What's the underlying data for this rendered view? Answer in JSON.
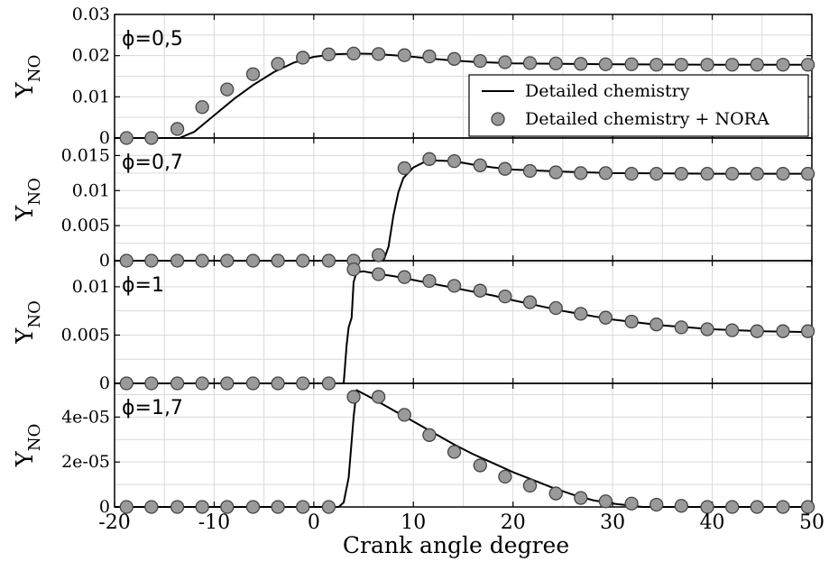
{
  "chart_data": {
    "type": "line",
    "xlabel": "Crank angle degree",
    "xlim": [
      -20,
      50
    ],
    "xticks": [
      "-20",
      "-10",
      "0",
      "10",
      "20",
      "30",
      "40",
      "50"
    ],
    "grid": true,
    "legend": {
      "placement": "inside first panel, right",
      "entries": [
        {
          "label": "Detailed chemistry",
          "marker": "line"
        },
        {
          "label": "Detailed chemistry + NORA",
          "marker": "circle"
        }
      ]
    },
    "panels": [
      {
        "annotation": "ϕ=0,5",
        "ylabel": "Y",
        "ylabel_sub": "NO",
        "ylim": [
          0,
          0.03
        ],
        "yticks": [
          0,
          0.01,
          0.02,
          0.03
        ],
        "yticklabels": [
          "0",
          "0.01",
          "0.02",
          "0.03"
        ],
        "series": [
          {
            "name": "Detailed chemistry",
            "x": [
              -20,
              -13.5,
              -12,
              -10,
              -8,
              -6,
              -4,
              -2,
              0,
              2,
              4,
              6,
              8,
              10,
              12,
              14,
              16,
              18,
              20,
              25,
              30,
              40,
              50
            ],
            "y": [
              0,
              0,
              0.0015,
              0.0055,
              0.0095,
              0.013,
              0.016,
              0.0183,
              0.0197,
              0.0203,
              0.0205,
              0.0204,
              0.0201,
              0.0197,
              0.0192,
              0.0188,
              0.0185,
              0.0183,
              0.0181,
              0.018,
              0.0179,
              0.0178,
              0.0178
            ]
          },
          {
            "name": "Detailed chemistry + NORA",
            "x": [
              -18.8,
              -16.3,
              -13.7,
              -11.2,
              -8.7,
              -6.1,
              -3.6,
              -1.1,
              1.5,
              4.0,
              6.5,
              9.1,
              11.6,
              14.1,
              16.7,
              19.2,
              21.7,
              24.3,
              26.8,
              29.3,
              31.9,
              34.4,
              36.9,
              39.5,
              42.0,
              44.5,
              47.1,
              49.6
            ],
            "y": [
              0,
              0,
              0.0022,
              0.0075,
              0.0118,
              0.0155,
              0.018,
              0.0195,
              0.0203,
              0.0205,
              0.0204,
              0.0201,
              0.0198,
              0.0192,
              0.0187,
              0.0184,
              0.0182,
              0.0181,
              0.018,
              0.0179,
              0.0179,
              0.0178,
              0.0178,
              0.0178,
              0.0178,
              0.0178,
              0.0178,
              0.0178
            ]
          }
        ]
      },
      {
        "annotation": "ϕ=0,7",
        "ylabel": "Y",
        "ylabel_sub": "NO",
        "ylim": [
          0,
          0.0175
        ],
        "yticks": [
          0,
          0.005,
          0.01,
          0.015
        ],
        "yticklabels": [
          "0",
          "0.005",
          "0.01",
          "0.015"
        ],
        "series": [
          {
            "name": "Detailed chemistry",
            "x": [
              -20,
              7,
              7.5,
              8,
              8.5,
              9,
              10,
              11,
              12,
              14,
              16,
              18,
              20,
              25,
              30,
              40,
              50
            ],
            "y": [
              0,
              0,
              0.002,
              0.0065,
              0.0098,
              0.0118,
              0.0133,
              0.014,
              0.0143,
              0.0142,
              0.0137,
              0.0133,
              0.013,
              0.0127,
              0.0125,
              0.0124,
              0.0124
            ]
          },
          {
            "name": "Detailed chemistry + NORA",
            "x": [
              -18.8,
              -16.3,
              -13.7,
              -11.2,
              -8.7,
              -6.1,
              -3.6,
              -1.1,
              1.5,
              4.0,
              6.5,
              9.1,
              11.6,
              14.1,
              16.7,
              19.2,
              21.7,
              24.3,
              26.8,
              29.3,
              31.9,
              34.4,
              36.9,
              39.5,
              42.0,
              44.5,
              47.1,
              49.6
            ],
            "y": [
              0,
              0,
              0,
              0,
              0,
              0,
              0,
              0,
              0,
              0,
              0.0008,
              0.0132,
              0.0145,
              0.0142,
              0.0136,
              0.0131,
              0.0128,
              0.0126,
              0.0125,
              0.0125,
              0.0124,
              0.0124,
              0.0124,
              0.0124,
              0.0124,
              0.0124,
              0.0124,
              0.0124
            ]
          }
        ]
      },
      {
        "annotation": "ϕ=1",
        "ylabel": "Y",
        "ylabel_sub": "NO",
        "ylim": [
          0,
          0.0127
        ],
        "yticks": [
          0,
          0.005,
          0.01
        ],
        "yticklabels": [
          "0",
          "0.005",
          "0.01"
        ],
        "series": [
          {
            "name": "Detailed chemistry",
            "x": [
              -20,
              3,
              3.3,
              3.5,
              3.8,
              4.0,
              4.3,
              5,
              6,
              8,
              10,
              12,
              14,
              16,
              18,
              20,
              25,
              30,
              35,
              40,
              45,
              50
            ],
            "y": [
              0,
              0,
              0.004,
              0.0058,
              0.0068,
              0.0105,
              0.0115,
              0.0116,
              0.0114,
              0.0111,
              0.0107,
              0.0103,
              0.0099,
              0.0095,
              0.0091,
              0.0086,
              0.0075,
              0.0066,
              0.006,
              0.0056,
              0.0054,
              0.0053
            ]
          },
          {
            "name": "Detailed chemistry + NORA",
            "x": [
              -18.8,
              -16.3,
              -13.7,
              -11.2,
              -8.7,
              -6.1,
              -3.6,
              -1.1,
              1.5,
              4.0,
              6.5,
              9.1,
              11.6,
              14.1,
              16.7,
              19.2,
              21.7,
              24.3,
              26.8,
              29.3,
              31.9,
              34.4,
              36.9,
              39.5,
              42.0,
              44.5,
              47.1,
              49.6
            ],
            "y": [
              0,
              0,
              0,
              0,
              0,
              0,
              0,
              0,
              0,
              0.0118,
              0.0113,
              0.011,
              0.0106,
              0.0101,
              0.0096,
              0.009,
              0.0084,
              0.0078,
              0.0072,
              0.0068,
              0.0064,
              0.0061,
              0.0058,
              0.0056,
              0.0055,
              0.0054,
              0.0054,
              0.0054
            ]
          }
        ]
      },
      {
        "annotation": "ϕ=1,7",
        "ylabel": "Y",
        "ylabel_sub": "NO",
        "ylim": [
          0,
          5.5e-05
        ],
        "yticks": [
          0,
          2e-05,
          4e-05
        ],
        "yticklabels": [
          "0",
          "2e-05",
          "4e-05"
        ],
        "series": [
          {
            "name": "Detailed chemistry",
            "x": [
              -20,
              2.5,
              3,
              3.5,
              4,
              4.3,
              6,
              8,
              10,
              12,
              14,
              16,
              18,
              20,
              22,
              24,
              26,
              28,
              30,
              32,
              33,
              35,
              40,
              50
            ],
            "y": [
              0,
              0,
              2e-06,
              1.3e-05,
              4e-05,
              5.2e-05,
              4.8e-05,
              4.3e-05,
              3.8e-05,
              3.3e-05,
              2.8e-05,
              2.35e-05,
              1.95e-05,
              1.55e-05,
              1.2e-05,
              8.5e-06,
              5.5e-06,
              3e-06,
              1.5e-06,
              5e-07,
              0,
              0,
              0,
              0
            ]
          },
          {
            "name": "Detailed chemistry + NORA",
            "x": [
              -18.8,
              -16.3,
              -13.7,
              -11.2,
              -8.7,
              -6.1,
              -3.6,
              -1.1,
              1.5,
              4.0,
              6.5,
              9.1,
              11.6,
              14.1,
              16.7,
              19.2,
              21.7,
              24.3,
              26.8,
              29.3,
              31.9,
              34.4,
              36.9,
              39.5,
              42.0,
              44.5,
              47.1,
              49.6
            ],
            "y": [
              0,
              0,
              0,
              0,
              0,
              0,
              0,
              0,
              0,
              4.9e-05,
              4.9e-05,
              4.1e-05,
              3.2e-05,
              2.45e-05,
              1.85e-05,
              1.35e-05,
              9.5e-06,
              6e-06,
              4e-06,
              2.5e-06,
              1.5e-06,
              1e-06,
              5e-07,
              0,
              0,
              0,
              0,
              0
            ]
          }
        ]
      }
    ]
  }
}
